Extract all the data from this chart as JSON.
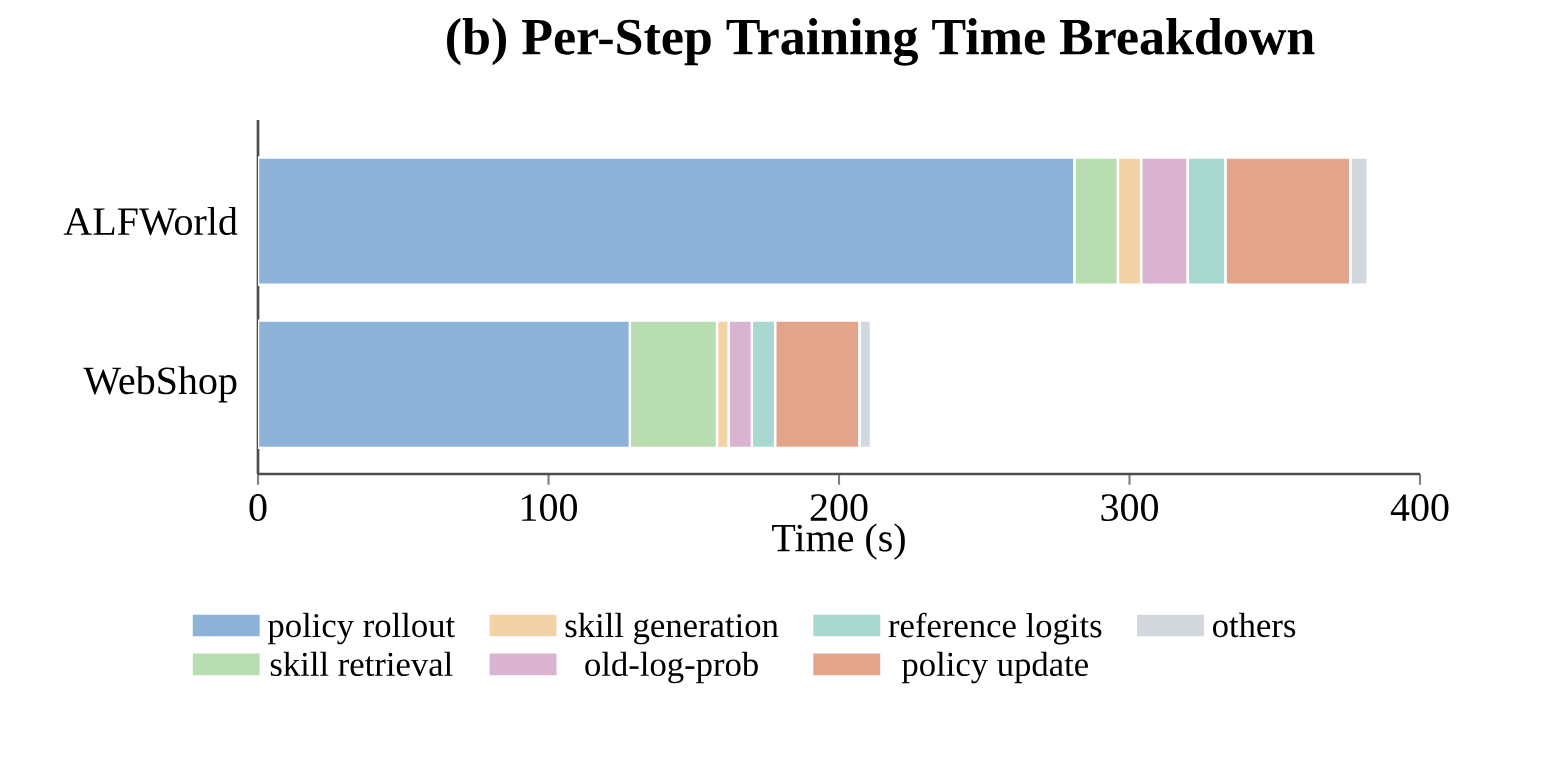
{
  "chart_data": {
    "type": "bar",
    "orientation": "horizontal",
    "stacked": true,
    "title": "(b) Per-Step Training Time Breakdown",
    "xlabel": "Time (s)",
    "categories": [
      "ALFWorld",
      "WebShop"
    ],
    "xlim": [
      0,
      400
    ],
    "xticks": [
      0,
      100,
      200,
      300,
      400
    ],
    "legend": "bottom",
    "series": [
      {
        "name": "policy rollout",
        "color": "#8db3d9",
        "values": [
          281,
          128
        ]
      },
      {
        "name": "skill retrieval",
        "color": "#b7ddb0",
        "values": [
          15,
          30
        ]
      },
      {
        "name": "skill generation",
        "color": "#f3d3a6",
        "values": [
          8,
          4
        ]
      },
      {
        "name": "old-log-prob",
        "color": "#d9b3d0",
        "values": [
          16,
          8
        ]
      },
      {
        "name": "reference logits",
        "color": "#a8d8d0",
        "values": [
          13,
          8
        ]
      },
      {
        "name": "policy update",
        "color": "#e3a48c",
        "values": [
          43,
          29
        ]
      },
      {
        "name": "others",
        "color": "#d3d7de",
        "values": [
          6,
          4
        ]
      }
    ]
  }
}
